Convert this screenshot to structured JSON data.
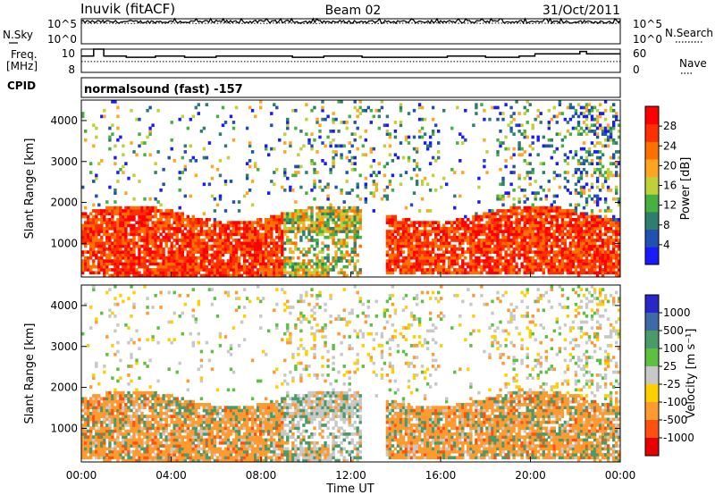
{
  "header": {
    "station": "Inuvik (fitACF)",
    "beam": "Beam 02",
    "date": "31/Oct/2011",
    "cpid_label": "CPID",
    "cpid_value": "normalsound (fast) -157"
  },
  "chart_data": [
    {
      "type": "line",
      "panel": "noise",
      "left_label": "N.Sky",
      "right_label": "N.Search",
      "left_ticks": [
        "10^5",
        "10^0"
      ],
      "right_ticks": [
        "10^5",
        "10^0"
      ],
      "series": [
        {
          "name": "N.Sky",
          "style": "solid",
          "level_log10": 4.4
        },
        {
          "name": "N.Search",
          "style": "dotted",
          "level_log10": 4.1
        }
      ]
    },
    {
      "type": "line",
      "panel": "frequency",
      "left_label": "Freq.",
      "left_unit": "[MHz]",
      "right_label": "Nave",
      "left_ticks": [
        "10",
        "8"
      ],
      "right_ticks": [
        "60",
        "0"
      ],
      "ylim_left": [
        8,
        10
      ],
      "ylim_right": [
        0,
        60
      ],
      "x": [
        0,
        0.55,
        0.55,
        1.0,
        1.0,
        2.0,
        2.0,
        3.3,
        3.3,
        4.6,
        4.6,
        6.0,
        6.0,
        9.4,
        9.4,
        10.8,
        10.8,
        12.5,
        12.5,
        16.3,
        16.3,
        18.0,
        18.0,
        19.5,
        19.5,
        20.2,
        20.2,
        22.2,
        22.2,
        22.5,
        22.5,
        24
      ],
      "series": [
        {
          "name": "Freq.",
          "style": "solid",
          "values": [
            9.4,
            9.4,
            10.5,
            10.5,
            9.4,
            9.4,
            9.3,
            9.3,
            9.4,
            9.4,
            9.3,
            9.3,
            9.4,
            9.4,
            9.3,
            9.3,
            9.4,
            9.4,
            9.3,
            9.3,
            9.4,
            9.4,
            9.3,
            9.3,
            9.4,
            9.4,
            9.6,
            9.6,
            9.8,
            9.8,
            9.6,
            9.6
          ]
        },
        {
          "name": "Nave",
          "style": "dotted",
          "constant": 28
        }
      ]
    },
    {
      "type": "heatmap",
      "panel": "power",
      "ylabel": "Slant Range [km]",
      "colorbar_label": "Power [dB]",
      "xlim": [
        0,
        24
      ],
      "ylim": [
        180,
        4500
      ],
      "yticks": [
        1000,
        2000,
        3000,
        4000
      ],
      "colorbar_ticks": [
        4,
        8,
        12,
        16,
        20,
        24,
        28
      ],
      "colorbar_range": [
        0,
        32
      ],
      "colors": [
        "#1a1aff",
        "#2050b0",
        "#2e7d6e",
        "#46b040",
        "#c0d038",
        "#ffa520",
        "#ff7000",
        "#ff3000",
        "#ff0000"
      ]
    },
    {
      "type": "heatmap",
      "panel": "velocity",
      "ylabel": "Slant Range [km]",
      "colorbar_label": "Velocity [m s⁻¹]",
      "xlabel": "Time UT",
      "xlim": [
        0,
        24
      ],
      "ylim": [
        180,
        4500
      ],
      "xticks": [
        "00:00",
        "04:00",
        "08:00",
        "12:00",
        "16:00",
        "20:00",
        "00:00"
      ],
      "yticks": [
        1000,
        2000,
        3000,
        4000
      ],
      "colorbar_ticks": [
        "1000",
        "500",
        "100",
        "25",
        "-25",
        "-100",
        "-500",
        "-1000"
      ],
      "colors": [
        "#2828c8",
        "#3e6aa8",
        "#4a9a6a",
        "#5cc040",
        "#c8c8c8",
        "#ffd000",
        "#ff9a30",
        "#ff5010",
        "#e80000"
      ]
    }
  ]
}
